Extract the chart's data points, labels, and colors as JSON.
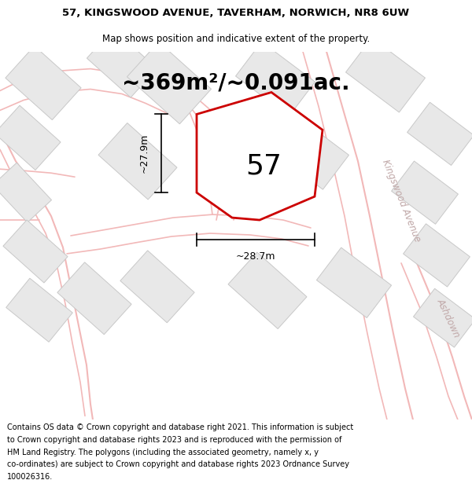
{
  "title_line1": "57, KINGSWOOD AVENUE, TAVERHAM, NORWICH, NR8 6UW",
  "title_line2": "Map shows position and indicative extent of the property.",
  "area_text": "~369m²/~0.091ac.",
  "number_label": "57",
  "dim_width": "~28.7m",
  "dim_height": "~27.9m",
  "street_label1": "Kingswood Avenue",
  "street_label2": "Ashdown",
  "bg_color": "#ffffff",
  "road_color": "#f2b8b8",
  "building_fill": "#e8e8e8",
  "building_edge": "#c8c8c8",
  "plot_fill": "#ffffff",
  "plot_edge": "#cc0000",
  "dim_color": "#000000",
  "text_color": "#000000",
  "street_text_color": "#c0a8a8",
  "title_fontsize": 9.5,
  "subtitle_fontsize": 8.5,
  "area_fontsize": 20,
  "number_fontsize": 26,
  "dim_fontsize": 9,
  "street_fontsize": 8.5,
  "footer_fontsize": 7.0,
  "footer_lines": [
    "Contains OS data © Crown copyright and database right 2021. This information is subject",
    "to Crown copyright and database rights 2023 and is reproduced with the permission of",
    "HM Land Registry. The polygons (including the associated geometry, namely x, y",
    "co-ordinates) are subject to Crown copyright and database rights 2023 Ordnance Survey",
    "100026316."
  ]
}
